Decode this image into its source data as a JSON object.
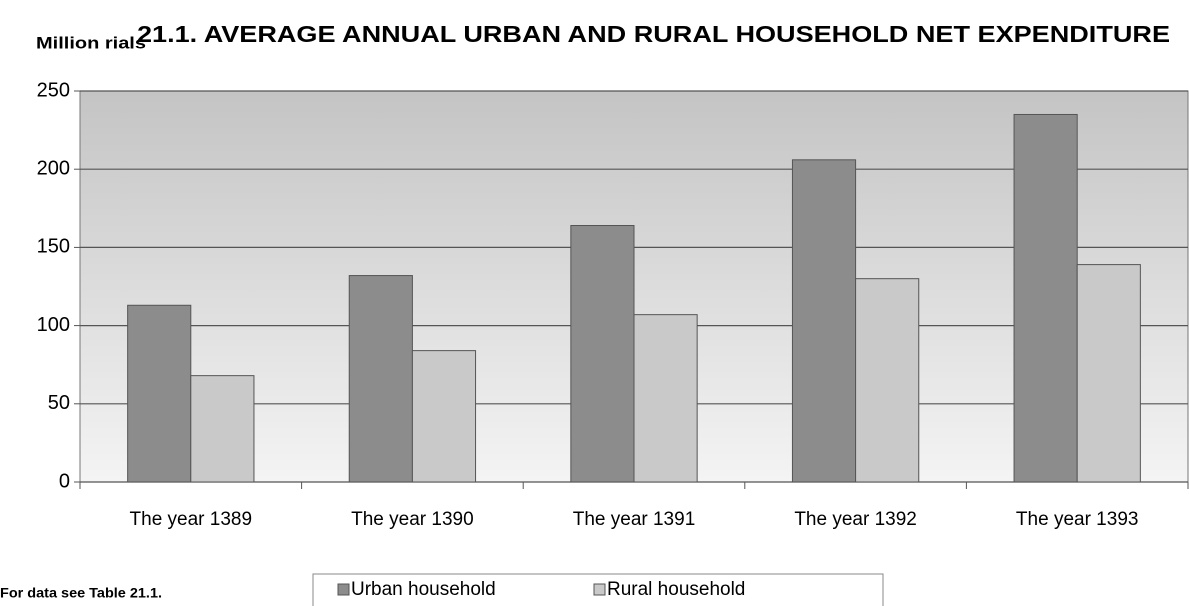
{
  "chart_data": {
    "type": "bar",
    "title": "21.1. AVERAGE ANNUAL URBAN AND RURAL HOUSEHOLD NET EXPENDITURE",
    "y_label": "Million rials",
    "note": "For data see Table 21.1.",
    "categories": [
      "The year 1389",
      "The year 1390",
      "The year 1391",
      "The year 1392",
      "The year 1393"
    ],
    "series": [
      {
        "name": "Urban household",
        "color": "#8c8c8c",
        "values": [
          113,
          132,
          164,
          206,
          235
        ]
      },
      {
        "name": "Rural household",
        "color": "#c9c9c9",
        "values": [
          68,
          84,
          107,
          130,
          139
        ]
      }
    ],
    "ylim": [
      0,
      250
    ],
    "yticks": [
      0,
      50,
      100,
      150,
      200,
      250
    ],
    "grid": true,
    "legend": "bottom"
  }
}
